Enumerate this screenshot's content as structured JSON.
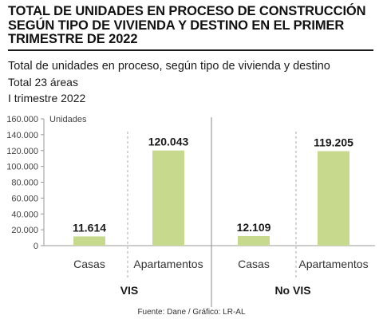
{
  "header": {
    "headline": "TOTAL DE UNIDADES EN PROCESO DE CONSTRUCCIÓN SEGÚN TIPO DE VIVIENDA Y DESTINO EN EL PRIMER TRIMESTRE DE 2022",
    "subtitle": "Total de unidades en proceso, según tipo de vivienda y destino",
    "coverage": "Total 23 áreas",
    "period": "I trimestre 2022"
  },
  "footer": {
    "source": "Fuente: Dane / Gráfico: LR-AL"
  },
  "colors": {
    "bar": "#c6d98c",
    "axis": "#999999",
    "text": "#1a1a1a"
  },
  "chart_data": {
    "type": "bar",
    "ylabel": "Unidades",
    "ylim": [
      0,
      160000
    ],
    "yticks": [
      0,
      20000,
      40000,
      60000,
      80000,
      100000,
      120000,
      140000,
      160000
    ],
    "ytick_labels": [
      "0",
      "20.000",
      "40.000",
      "60.000",
      "80.000",
      "100.000",
      "120.000",
      "140.000",
      "160.000"
    ],
    "groups": [
      "VIS",
      "No VIS"
    ],
    "categories": [
      "Casas",
      "Apartamentos",
      "Casas",
      "Apartamentos"
    ],
    "category_group": [
      "VIS",
      "VIS",
      "No VIS",
      "No VIS"
    ],
    "values": [
      11614,
      120043,
      12109,
      119205
    ],
    "value_labels": [
      "11.614",
      "120.043",
      "12.109",
      "119.205"
    ],
    "grid": false,
    "legend": "none"
  }
}
